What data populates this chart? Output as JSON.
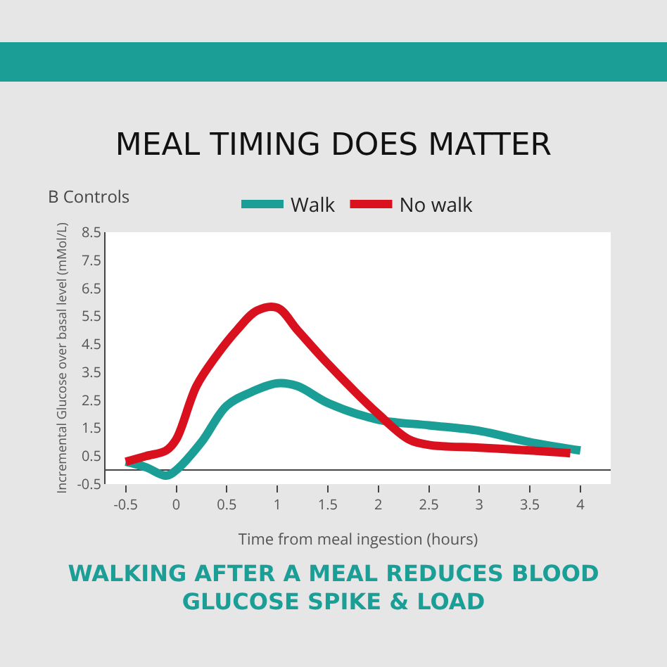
{
  "chart_data": {
    "type": "line",
    "title": "MEAL TIMING DOES MATTER",
    "subtitle": "B Controls",
    "xlabel": "Time from meal ingestion (hours)",
    "ylabel": "Incremental Glucose over basal level (mMol/L)",
    "annotations": [
      "WALKING AFTER A MEAL REDUCES BLOOD GLUCOSE SPIKE & LOAD"
    ],
    "series": [
      {
        "name": "Walk",
        "color": "#1a9e96",
        "x": [
          -0.5,
          -0.3,
          -0.1,
          0,
          0.25,
          0.5,
          0.75,
          1,
          1.2,
          1.5,
          2,
          2.5,
          3,
          3.5,
          4
        ],
        "values": [
          0.3,
          0.1,
          -0.2,
          0,
          1,
          2.3,
          2.8,
          3.1,
          3,
          2.4,
          1.8,
          1.6,
          1.4,
          1,
          0.7
        ]
      },
      {
        "name": "No walk",
        "color": "#d9101e",
        "x": [
          -0.5,
          -0.3,
          -0.1,
          0,
          0.2,
          0.4,
          0.6,
          0.8,
          1,
          1.2,
          1.5,
          2,
          2.3,
          2.5,
          3,
          3.5,
          3.9
        ],
        "values": [
          0.3,
          0.5,
          0.7,
          1.1,
          3,
          4.1,
          5,
          5.7,
          5.8,
          5,
          3.8,
          2,
          1.1,
          0.9,
          0.8,
          0.7,
          0.6
        ]
      }
    ],
    "xlim": [
      -0.7,
      4.3
    ],
    "xticks": [
      -0.5,
      0,
      0.5,
      1,
      1.5,
      2,
      2.5,
      3,
      3.5,
      4
    ],
    "ylim": [
      -0.5,
      8.5
    ],
    "yticks": [
      -0.5,
      0.5,
      1.5,
      2.5,
      3.5,
      4.5,
      5.5,
      6.5,
      7.5,
      8.5
    ],
    "grid": false,
    "legend": "top",
    "marker": "none",
    "line_style": "solid"
  }
}
